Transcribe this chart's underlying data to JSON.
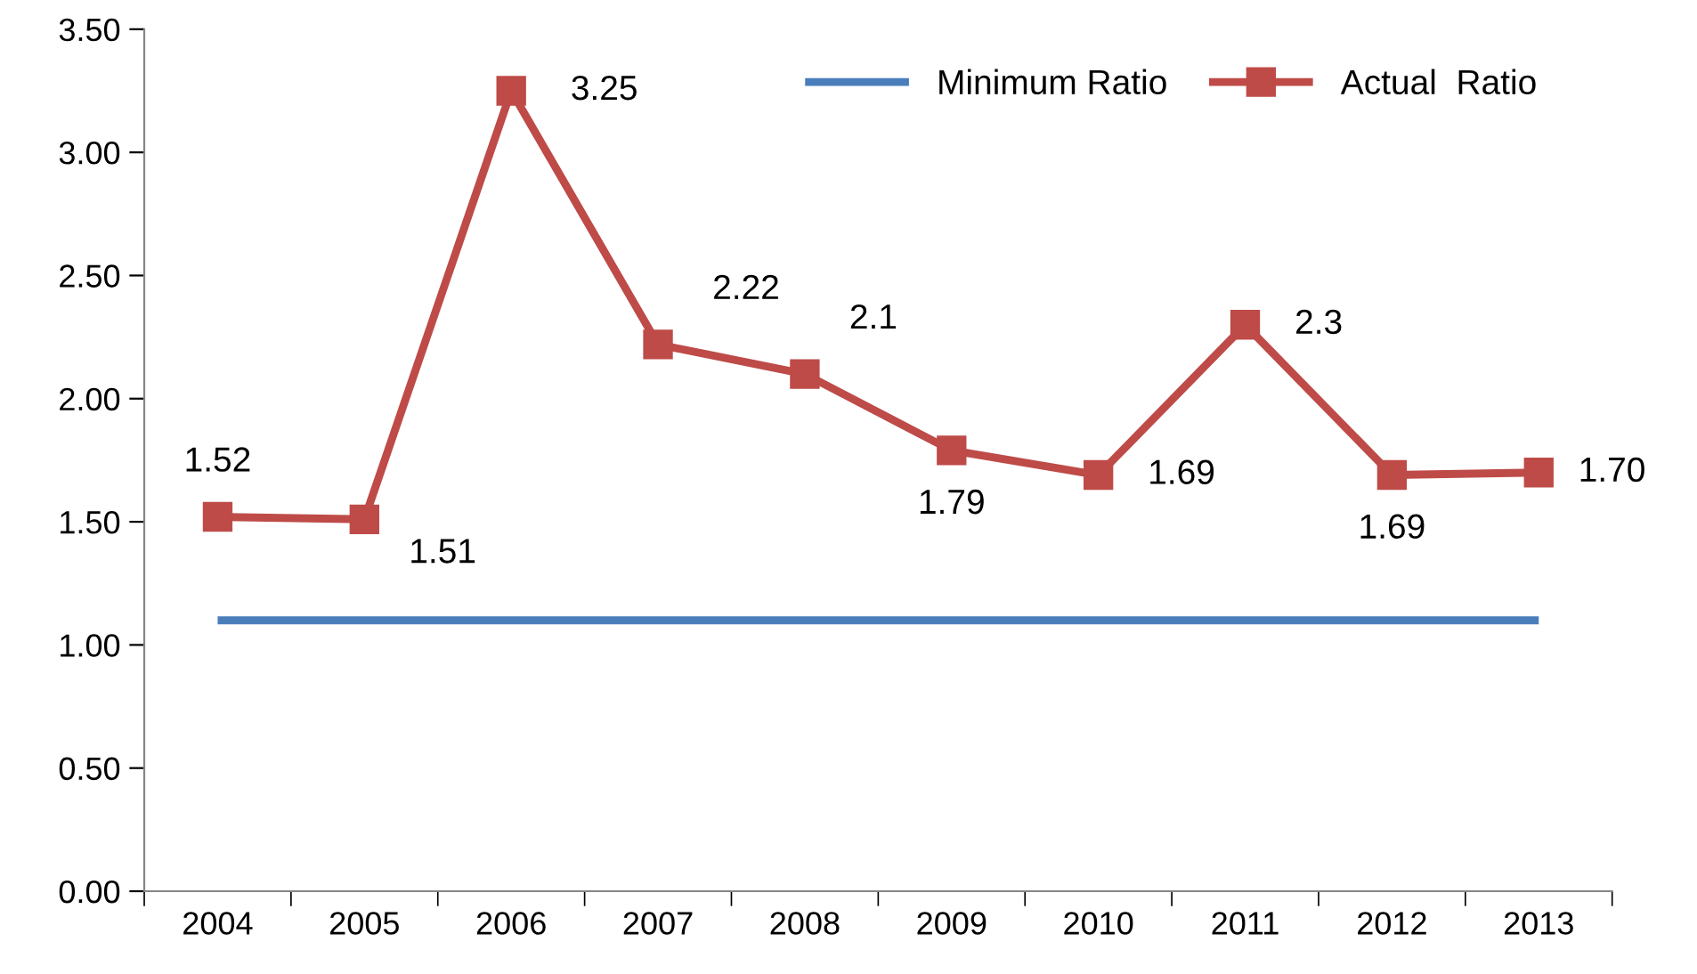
{
  "chart_data": {
    "type": "line",
    "categories": [
      "2004",
      "2005",
      "2006",
      "2007",
      "2008",
      "2009",
      "2010",
      "2011",
      "2012",
      "2013"
    ],
    "series": [
      {
        "name": "Minimum Ratio",
        "color": "#4a7ebb",
        "marker": "none",
        "values": [
          1.1,
          1.1,
          1.1,
          1.1,
          1.1,
          1.1,
          1.1,
          1.1,
          1.1,
          1.1
        ]
      },
      {
        "name": "Actual  Ratio",
        "color": "#be4b48",
        "marker": "square",
        "values": [
          1.52,
          1.51,
          3.25,
          2.22,
          2.1,
          1.79,
          1.69,
          2.3,
          1.69,
          1.7
        ],
        "value_labels": [
          "1.52",
          "1.51",
          "3.25",
          "2.22",
          "2.1",
          "1.79",
          "1.69",
          "2.3",
          "1.69",
          "1.70"
        ]
      }
    ],
    "ylim": [
      0,
      3.5
    ],
    "yticks": [
      {
        "value": 0,
        "label": "0.00"
      },
      {
        "value": 0.5,
        "label": "0.50"
      },
      {
        "value": 1,
        "label": "1.00"
      },
      {
        "value": 1.5,
        "label": "1.50"
      },
      {
        "value": 2,
        "label": "2.00"
      },
      {
        "value": 2.5,
        "label": "2.50"
      },
      {
        "value": 3,
        "label": "3.00"
      },
      {
        "value": 3.5,
        "label": "3.50"
      }
    ],
    "grid": false,
    "legend": "top right",
    "line_style": "solid"
  }
}
